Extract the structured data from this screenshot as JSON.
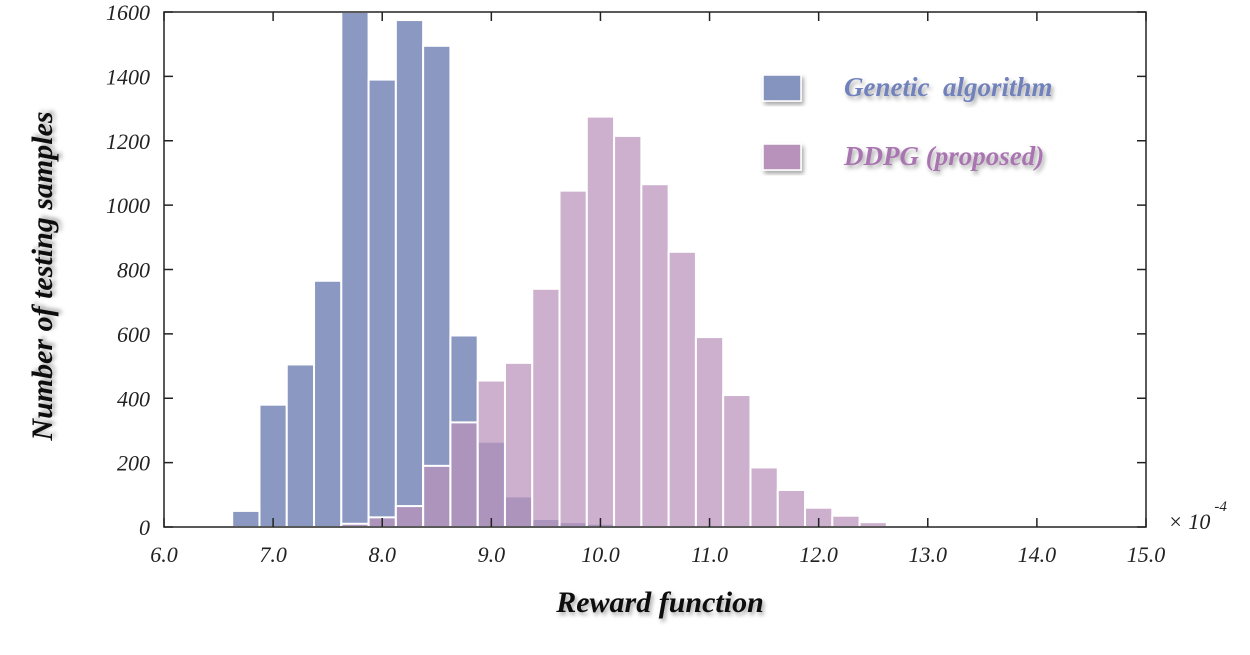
{
  "chart_data": {
    "type": "bar",
    "subtype": "histogram",
    "xlabel": "Reward function",
    "ylabel": "Number of testing samples",
    "xlim": [
      6.0,
      15.0
    ],
    "ylim": [
      0,
      1600
    ],
    "x_ticks": [
      "6.0",
      "7.0",
      "8.0",
      "9.0",
      "10.0",
      "11.0",
      "12.0",
      "13.0",
      "14.0",
      "15.0"
    ],
    "y_ticks": [
      "0",
      "200",
      "400",
      "600",
      "800",
      "1000",
      "1200",
      "1400",
      "1600"
    ],
    "x_multiplier": "× 10",
    "x_multiplier_exp": "-4",
    "bin_width": 0.25,
    "legend_position": "top-right",
    "series": [
      {
        "name": "Genetic  algorithm",
        "color": "#8593bf",
        "bin_starts": [
          6.625,
          6.875,
          7.125,
          7.375,
          7.625,
          7.875,
          8.125,
          8.375,
          8.625,
          8.875,
          9.125,
          9.375,
          9.625,
          9.875,
          10.125
        ],
        "values": [
          50,
          380,
          505,
          765,
          1600,
          1390,
          1575,
          1495,
          595,
          265,
          95,
          25,
          15,
          10,
          5
        ]
      },
      {
        "name": "DDPG (proposed)",
        "color": "#b892bb",
        "bin_starts": [
          7.625,
          7.875,
          8.125,
          8.375,
          8.625,
          8.875,
          9.125,
          9.375,
          9.625,
          9.875,
          10.125,
          10.375,
          10.625,
          10.875,
          11.125,
          11.375,
          11.625,
          11.875,
          12.125,
          12.375,
          12.625
        ],
        "values": [
          10,
          30,
          65,
          190,
          325,
          455,
          510,
          740,
          1045,
          1275,
          1215,
          1065,
          855,
          590,
          410,
          185,
          115,
          60,
          35,
          15,
          5
        ]
      }
    ]
  }
}
